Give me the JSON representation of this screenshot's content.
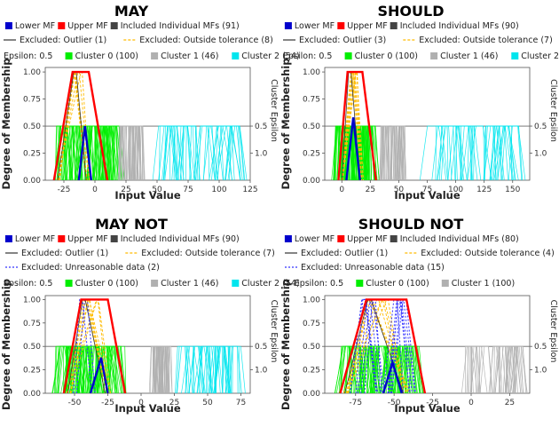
{
  "common": {
    "xlabel": "Input Value",
    "ylabel": "Degree of Membership",
    "secondary_ylabel": "Cluster Epsilon",
    "epsilon_label": "Epsilon: 0.5",
    "yticks": [
      "0.00",
      "0.25",
      "0.50",
      "0.75",
      "1.00"
    ],
    "sec_ticks": [
      "0.5",
      "1.0"
    ],
    "colors": {
      "lower": "#0000cc",
      "upper": "#ff0000",
      "included": "#444444",
      "outlier": "#333333",
      "tolerance": "#ffbb00",
      "unreasonable": "#3333ff",
      "c0": "#00ee00",
      "c1": "#b0b0b0",
      "c2": "#00e5ee"
    }
  },
  "chart_data": [
    {
      "type": "line",
      "title": "MAY",
      "xlabel": "Input Value",
      "ylabel": "Degree of Membership",
      "xlim": [
        -40,
        125
      ],
      "xticks": [
        "-25",
        "0",
        "25",
        "50",
        "75",
        "100",
        "125"
      ],
      "ylim": [
        0,
        1
      ],
      "legend": [
        "Lower MF",
        "Upper MF",
        "Included Individual MFs (91)",
        "Excluded: Outlier (1)",
        "Excluded: Outside tolerance (8)",
        "Cluster 0 (100)",
        "Cluster 1 (46)",
        "Cluster 2 (54)"
      ],
      "upper_mf": [
        [
          -33,
          0
        ],
        [
          -18,
          1
        ],
        [
          -5,
          1
        ],
        [
          10,
          0
        ]
      ],
      "lower_mf": [
        [
          -13,
          0
        ],
        [
          -8,
          0.5
        ],
        [
          -3,
          0
        ]
      ],
      "clusters": [
        {
          "name": "Cluster 0 (100)",
          "x_range": [
            -28,
            18
          ],
          "height": 0.5
        },
        {
          "name": "Cluster 1 (46)",
          "x_range": [
            20,
            38
          ],
          "height": 0.5
        },
        {
          "name": "Cluster 2 (54)",
          "x_range": [
            55,
            115
          ],
          "height": 0.5
        }
      ]
    },
    {
      "type": "line",
      "title": "SHOULD",
      "xlabel": "Input Value",
      "ylabel": "Degree of Membership",
      "xlim": [
        -15,
        165
      ],
      "xticks": [
        "0",
        "25",
        "50",
        "75",
        "100",
        "125",
        "150"
      ],
      "ylim": [
        0,
        1
      ],
      "legend": [
        "Lower MF",
        "Upper MF",
        "Included Individual MFs (90)",
        "Excluded: Outlier (3)",
        "Excluded: Outside tolerance (7)",
        "Cluster 0 (100)",
        "Cluster 1 (46)",
        "Cluster 2 (54)"
      ],
      "upper_mf": [
        [
          -3,
          0
        ],
        [
          5,
          1
        ],
        [
          18,
          1
        ],
        [
          30,
          0
        ]
      ],
      "lower_mf": [
        [
          4,
          0
        ],
        [
          10,
          0.58
        ],
        [
          16,
          0
        ]
      ],
      "clusters": [
        {
          "name": "Cluster 0 (100)",
          "x_range": [
            -5,
            28
          ],
          "height": 0.5
        },
        {
          "name": "Cluster 1 (46)",
          "x_range": [
            35,
            55
          ],
          "height": 0.5
        },
        {
          "name": "Cluster 2 (54)",
          "x_range": [
            80,
            160
          ],
          "height": 0.5
        }
      ]
    },
    {
      "type": "line",
      "title": "MAY NOT",
      "xlabel": "Input Value",
      "ylabel": "Degree of Membership",
      "xlim": [
        -72,
        82
      ],
      "xticks": [
        "-50",
        "-25",
        "0",
        "25",
        "50",
        "75"
      ],
      "ylim": [
        0,
        1
      ],
      "legend": [
        "Lower MF",
        "Upper MF",
        "Included Individual MFs (90)",
        "Excluded: Outlier (1)",
        "Excluded: Outside tolerance (7)",
        "Excluded: Unreasonable data (2)",
        "Cluster 0 (100)",
        "Cluster 1 (46)",
        "Cluster 2 (54)"
      ],
      "upper_mf": [
        [
          -58,
          0
        ],
        [
          -45,
          1
        ],
        [
          -25,
          1
        ],
        [
          -12,
          0
        ]
      ],
      "lower_mf": [
        [
          -38,
          0
        ],
        [
          -30,
          0.38
        ],
        [
          -25,
          0
        ]
      ],
      "clusters": [
        {
          "name": "Cluster 0 (100)",
          "x_range": [
            -62,
            -15
          ],
          "height": 0.5
        },
        {
          "name": "Cluster 1 (46)",
          "x_range": [
            8,
            22
          ],
          "height": 0.5
        },
        {
          "name": "Cluster 2 (54)",
          "x_range": [
            30,
            72
          ],
          "height": 0.5
        }
      ]
    },
    {
      "type": "line",
      "title": "SHOULD NOT",
      "xlabel": "Input Value",
      "ylabel": "Degree of Membership",
      "xlim": [
        -95,
        38
      ],
      "xticks": [
        "-75",
        "-50",
        "-25",
        "0",
        "25"
      ],
      "ylim": [
        0,
        1
      ],
      "legend": [
        "Lower MF",
        "Upper MF",
        "Included Individual MFs (80)",
        "Excluded: Outlier (1)",
        "Excluded: Outside tolerance (4)",
        "Excluded: Unreasonable data (15)",
        "Cluster 0 (100)",
        "Cluster 1 (100)"
      ],
      "upper_mf": [
        [
          -85,
          0
        ],
        [
          -68,
          1
        ],
        [
          -42,
          1
        ],
        [
          -30,
          0
        ]
      ],
      "lower_mf": [
        [
          -57,
          0
        ],
        [
          -51,
          0.33
        ],
        [
          -45,
          0
        ]
      ],
      "clusters": [
        {
          "name": "Cluster 0 (100)",
          "x_range": [
            -82,
            -35
          ],
          "height": 0.5
        },
        {
          "name": "Cluster 1 (100)",
          "x_range": [
            -2,
            32
          ],
          "height": 0.5
        }
      ]
    }
  ]
}
